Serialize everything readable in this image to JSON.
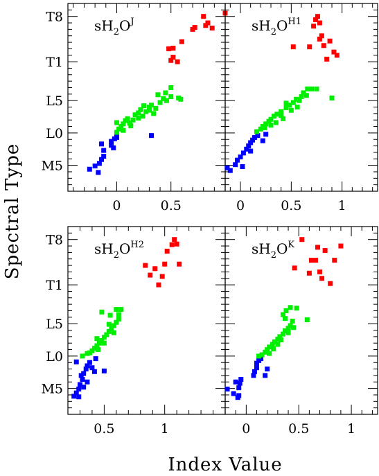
{
  "xlabel": "Index Value",
  "ylabel": "Spectral Type",
  "y_ticks": [
    {
      "label": "T8",
      "value": 28
    },
    {
      "label": "T1",
      "value": 21
    },
    {
      "label": "L5",
      "value": 15
    },
    {
      "label": "L0",
      "value": 10
    },
    {
      "label": "M5",
      "value": 5
    }
  ],
  "colors": {
    "M": "#0000ff",
    "L": "#00ee00",
    "T": "#ff0000"
  },
  "chart_data": [
    {
      "type": "scatter",
      "title_base": "sH",
      "title_sub": "2",
      "title_mid": "O",
      "title_sup": "J",
      "xlim": [
        -0.45,
        1.0
      ],
      "ylim": [
        1,
        30
      ],
      "x_ticks": [
        {
          "label": "0",
          "value": 0
        },
        {
          "label": "0.5",
          "value": 0.5
        }
      ],
      "series": [
        {
          "class": "M",
          "points": [
            [
              -0.25,
              4.4
            ],
            [
              -0.2,
              4.9
            ],
            [
              -0.17,
              3.9
            ],
            [
              -0.16,
              5.3
            ],
            [
              -0.14,
              5.9
            ],
            [
              -0.12,
              6.4
            ],
            [
              -0.12,
              7.3
            ],
            [
              -0.14,
              8.3
            ],
            [
              -0.05,
              8.7
            ],
            [
              -0.05,
              8.1
            ],
            [
              -0.03,
              7.7
            ],
            [
              -0.02,
              9.1
            ],
            [
              0.0,
              9.3
            ],
            [
              0.0,
              9.6
            ],
            [
              0.32,
              9.6
            ]
          ]
        },
        {
          "class": "L",
          "points": [
            [
              0.0,
              10.1
            ],
            [
              0.02,
              10.6
            ],
            [
              0.04,
              11.0
            ],
            [
              0.06,
              11.4
            ],
            [
              0.08,
              11.9
            ],
            [
              0.1,
              12.2
            ],
            [
              0.12,
              11.5
            ],
            [
              0.15,
              12.0
            ],
            [
              0.17,
              12.8
            ],
            [
              0.2,
              13.1
            ],
            [
              0.22,
              13.6
            ],
            [
              0.24,
              12.6
            ],
            [
              0.27,
              13.3
            ],
            [
              0.3,
              14.0
            ],
            [
              0.32,
              14.3
            ],
            [
              0.34,
              13.0
            ],
            [
              0.36,
              13.8
            ],
            [
              0.4,
              14.7
            ],
            [
              0.43,
              15.3
            ],
            [
              0.45,
              16.2
            ],
            [
              0.5,
              15.6
            ],
            [
              0.5,
              17.0
            ],
            [
              0.57,
              15.4
            ],
            [
              0.59,
              15.2
            ],
            [
              0.0,
              11.6
            ],
            [
              0.06,
              10.4
            ],
            [
              0.2,
              12.3
            ],
            [
              0.3,
              13.5
            ],
            [
              0.38,
              15.9
            ],
            [
              0.46,
              15.0
            ],
            [
              0.13,
              11.1
            ],
            [
              0.25,
              14.2
            ]
          ]
        },
        {
          "class": "T",
          "points": [
            [
              0.5,
              21.2
            ],
            [
              0.52,
              21.7
            ],
            [
              0.56,
              21.0
            ],
            [
              0.52,
              23.1
            ],
            [
              0.48,
              23.0
            ],
            [
              0.6,
              24.1
            ],
            [
              0.7,
              26.0
            ],
            [
              0.72,
              26.3
            ],
            [
              0.8,
              28.0
            ],
            [
              0.82,
              26.6
            ],
            [
              0.84,
              27.0
            ],
            [
              0.88,
              26.2
            ],
            [
              1.0,
              28.5
            ]
          ]
        }
      ]
    },
    {
      "type": "scatter",
      "title_base": "sH",
      "title_sub": "2",
      "title_mid": "O",
      "title_sup": "H1",
      "xlim": [
        -0.15,
        1.35
      ],
      "ylim": [
        1,
        30
      ],
      "x_ticks": [
        {
          "label": "0",
          "value": 0
        },
        {
          "label": "0.5",
          "value": 0.5
        },
        {
          "label": "1",
          "value": 1
        }
      ],
      "series": [
        {
          "class": "M",
          "points": [
            [
              -0.13,
              4.6
            ],
            [
              -0.1,
              4.2
            ],
            [
              -0.05,
              5.1
            ],
            [
              -0.03,
              5.8
            ],
            [
              0.0,
              6.3
            ],
            [
              0.03,
              6.9
            ],
            [
              0.06,
              7.5
            ],
            [
              0.08,
              8.0
            ],
            [
              0.1,
              8.5
            ],
            [
              0.12,
              8.9
            ],
            [
              0.14,
              9.3
            ],
            [
              0.17,
              9.6
            ],
            [
              0.22,
              8.8
            ],
            [
              0.1,
              7.2
            ],
            [
              0.25,
              9.8
            ],
            [
              0.02,
              4.8
            ]
          ]
        },
        {
          "class": "L",
          "points": [
            [
              0.16,
              10.2
            ],
            [
              0.2,
              10.6
            ],
            [
              0.22,
              11.0
            ],
            [
              0.25,
              11.4
            ],
            [
              0.28,
              11.8
            ],
            [
              0.3,
              12.1
            ],
            [
              0.33,
              12.6
            ],
            [
              0.36,
              12.9
            ],
            [
              0.4,
              13.3
            ],
            [
              0.45,
              13.9
            ],
            [
              0.48,
              14.3
            ],
            [
              0.52,
              14.7
            ],
            [
              0.55,
              15.2
            ],
            [
              0.6,
              15.6
            ],
            [
              0.62,
              16.2
            ],
            [
              0.66,
              16.8
            ],
            [
              0.7,
              16.8
            ],
            [
              0.75,
              16.8
            ],
            [
              0.9,
              15.4
            ],
            [
              0.3,
              11.2
            ],
            [
              0.35,
              11.6
            ],
            [
              0.42,
              12.2
            ],
            [
              0.5,
              13.5
            ],
            [
              0.56,
              14.0
            ],
            [
              0.58,
              15.0
            ],
            [
              0.24,
              10.8
            ],
            [
              0.45,
              14.6
            ],
            [
              0.65,
              15.8
            ],
            [
              0.4,
              12.7
            ]
          ]
        },
        {
          "class": "T",
          "points": [
            [
              0.52,
              23.3
            ],
            [
              0.68,
              23.3
            ],
            [
              0.72,
              26.5
            ],
            [
              0.74,
              27.5
            ],
            [
              0.76,
              28.0
            ],
            [
              0.78,
              27.0
            ],
            [
              0.8,
              25.0
            ],
            [
              0.78,
              24.5
            ],
            [
              0.82,
              23.5
            ],
            [
              0.85,
              21.4
            ],
            [
              0.88,
              24.2
            ],
            [
              0.92,
              22.5
            ],
            [
              0.95,
              22.0
            ]
          ]
        }
      ]
    },
    {
      "type": "scatter",
      "title_base": "sH",
      "title_sub": "2",
      "title_mid": "O",
      "title_sup": "H2",
      "xlim": [
        0.2,
        1.5
      ],
      "ylim": [
        1,
        30
      ],
      "x_ticks": [
        {
          "label": "0.5",
          "value": 0.5
        },
        {
          "label": "1",
          "value": 1
        }
      ],
      "series": [
        {
          "class": "M",
          "points": [
            [
              0.25,
              3.8
            ],
            [
              0.27,
              4.3
            ],
            [
              0.29,
              4.9
            ],
            [
              0.3,
              5.6
            ],
            [
              0.32,
              6.4
            ],
            [
              0.33,
              7.3
            ],
            [
              0.35,
              8.0
            ],
            [
              0.36,
              8.5
            ],
            [
              0.38,
              9.0
            ],
            [
              0.4,
              8.2
            ],
            [
              0.42,
              7.6
            ],
            [
              0.33,
              5.2
            ],
            [
              0.27,
              9.1
            ],
            [
              0.31,
              7.0
            ],
            [
              0.43,
              9.6
            ],
            [
              0.5,
              7.7
            ],
            [
              0.36,
              6.0
            ],
            [
              0.29,
              3.7
            ]
          ]
        },
        {
          "class": "L",
          "points": [
            [
              0.32,
              10.0
            ],
            [
              0.36,
              10.4
            ],
            [
              0.4,
              10.8
            ],
            [
              0.42,
              11.2
            ],
            [
              0.44,
              11.6
            ],
            [
              0.46,
              12.0
            ],
            [
              0.48,
              12.4
            ],
            [
              0.5,
              12.9
            ],
            [
              0.52,
              13.3
            ],
            [
              0.54,
              13.8
            ],
            [
              0.56,
              14.2
            ],
            [
              0.58,
              14.7
            ],
            [
              0.6,
              15.2
            ],
            [
              0.62,
              15.7
            ],
            [
              0.55,
              16.3
            ],
            [
              0.48,
              16.8
            ],
            [
              0.6,
              17.2
            ],
            [
              0.64,
              17.2
            ],
            [
              0.38,
              10.5
            ],
            [
              0.45,
              11.0
            ],
            [
              0.5,
              12.0
            ],
            [
              0.54,
              14.9
            ],
            [
              0.58,
              13.6
            ],
            [
              0.44,
              12.7
            ],
            [
              0.62,
              16.4
            ]
          ]
        },
        {
          "class": "T",
          "points": [
            [
              0.84,
              24.0
            ],
            [
              0.88,
              22.5
            ],
            [
              0.92,
              23.5
            ],
            [
              0.95,
              21.0
            ],
            [
              0.98,
              22.3
            ],
            [
              1.0,
              24.2
            ],
            [
              1.02,
              26.2
            ],
            [
              1.06,
              27.2
            ],
            [
              1.08,
              28.0
            ],
            [
              1.1,
              27.3
            ],
            [
              1.12,
              24.2
            ]
          ]
        }
      ]
    },
    {
      "type": "scatter",
      "title_base": "sH",
      "title_sub": "2",
      "title_mid": "O",
      "title_sup": "K",
      "xlim": [
        -0.2,
        1.25
      ],
      "ylim": [
        1,
        30
      ],
      "x_ticks": [
        {
          "label": "0",
          "value": 0
        },
        {
          "label": "0.5",
          "value": 0.5
        },
        {
          "label": "1",
          "value": 1
        }
      ],
      "series": [
        {
          "class": "M",
          "points": [
            [
              -0.18,
              4.9
            ],
            [
              -0.12,
              4.2
            ],
            [
              -0.08,
              3.6
            ],
            [
              -0.07,
              5.1
            ],
            [
              -0.06,
              5.8
            ],
            [
              -0.05,
              6.4
            ],
            [
              -0.1,
              6.0
            ],
            [
              -0.07,
              3.9
            ],
            [
              0.07,
              7.0
            ],
            [
              0.08,
              7.6
            ],
            [
              0.1,
              8.2
            ],
            [
              0.1,
              8.9
            ],
            [
              0.12,
              9.3
            ],
            [
              0.14,
              9.6
            ],
            [
              0.2,
              8.0
            ],
            [
              0.18,
              7.0
            ]
          ]
        },
        {
          "class": "L",
          "points": [
            [
              0.12,
              10.0
            ],
            [
              0.15,
              10.2
            ],
            [
              0.18,
              10.6
            ],
            [
              0.2,
              11.0
            ],
            [
              0.22,
              11.4
            ],
            [
              0.25,
              11.8
            ],
            [
              0.27,
              12.2
            ],
            [
              0.3,
              12.6
            ],
            [
              0.32,
              13.0
            ],
            [
              0.35,
              13.4
            ],
            [
              0.37,
              13.9
            ],
            [
              0.4,
              14.3
            ],
            [
              0.42,
              14.7
            ],
            [
              0.44,
              15.4
            ],
            [
              0.37,
              15.8
            ],
            [
              0.35,
              16.4
            ],
            [
              0.38,
              17.0
            ],
            [
              0.42,
              17.5
            ],
            [
              0.48,
              17.4
            ],
            [
              0.58,
              15.6
            ],
            [
              0.3,
              11.8
            ],
            [
              0.26,
              11.1
            ],
            [
              0.33,
              12.5
            ],
            [
              0.4,
              13.6
            ],
            [
              0.45,
              14.4
            ],
            [
              0.22,
              10.4
            ]
          ]
        },
        {
          "class": "T",
          "points": [
            [
              0.46,
              23.6
            ],
            [
              0.53,
              28.0
            ],
            [
              0.6,
              22.8
            ],
            [
              0.62,
              24.8
            ],
            [
              0.66,
              24.8
            ],
            [
              0.68,
              26.8
            ],
            [
              0.7,
              23.0
            ],
            [
              0.72,
              22.0
            ],
            [
              0.75,
              26.3
            ],
            [
              0.8,
              21.2
            ],
            [
              0.84,
              24.8
            ],
            [
              0.9,
              27.0
            ]
          ]
        }
      ]
    }
  ]
}
